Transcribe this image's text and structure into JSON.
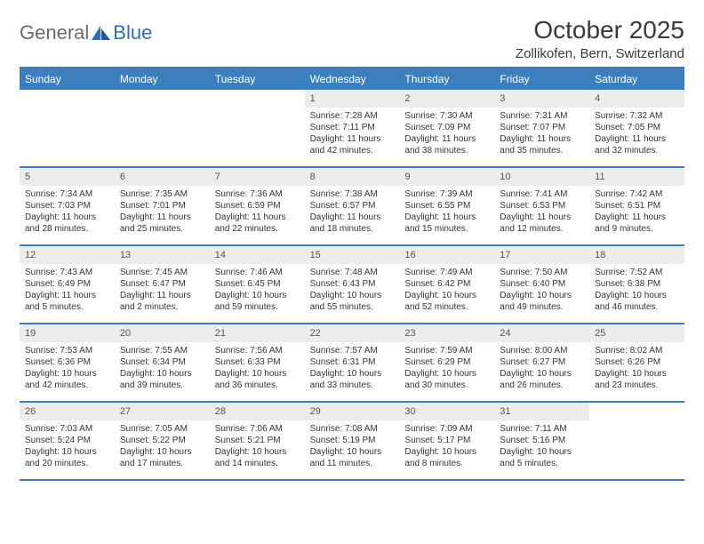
{
  "logo": {
    "general": "General",
    "blue": "Blue"
  },
  "title": "October 2025",
  "location": "Zollikofen, Bern, Switzerland",
  "colors": {
    "header_bg": "#3c7fbd",
    "header_text": "#ffffff",
    "daynum_bg": "#ececec",
    "daynum_text": "#555555",
    "body_text": "#333333",
    "logo_grey": "#6b6b6b",
    "logo_blue": "#2f6fae",
    "page_bg": "#ffffff"
  },
  "dow": [
    "Sunday",
    "Monday",
    "Tuesday",
    "Wednesday",
    "Thursday",
    "Friday",
    "Saturday"
  ],
  "weeks": [
    [
      null,
      null,
      null,
      {
        "n": "1",
        "sr": "Sunrise: 7:28 AM",
        "ss": "Sunset: 7:11 PM",
        "dl": "Daylight: 11 hours and 42 minutes."
      },
      {
        "n": "2",
        "sr": "Sunrise: 7:30 AM",
        "ss": "Sunset: 7:09 PM",
        "dl": "Daylight: 11 hours and 38 minutes."
      },
      {
        "n": "3",
        "sr": "Sunrise: 7:31 AM",
        "ss": "Sunset: 7:07 PM",
        "dl": "Daylight: 11 hours and 35 minutes."
      },
      {
        "n": "4",
        "sr": "Sunrise: 7:32 AM",
        "ss": "Sunset: 7:05 PM",
        "dl": "Daylight: 11 hours and 32 minutes."
      }
    ],
    [
      {
        "n": "5",
        "sr": "Sunrise: 7:34 AM",
        "ss": "Sunset: 7:03 PM",
        "dl": "Daylight: 11 hours and 28 minutes."
      },
      {
        "n": "6",
        "sr": "Sunrise: 7:35 AM",
        "ss": "Sunset: 7:01 PM",
        "dl": "Daylight: 11 hours and 25 minutes."
      },
      {
        "n": "7",
        "sr": "Sunrise: 7:36 AM",
        "ss": "Sunset: 6:59 PM",
        "dl": "Daylight: 11 hours and 22 minutes."
      },
      {
        "n": "8",
        "sr": "Sunrise: 7:38 AM",
        "ss": "Sunset: 6:57 PM",
        "dl": "Daylight: 11 hours and 18 minutes."
      },
      {
        "n": "9",
        "sr": "Sunrise: 7:39 AM",
        "ss": "Sunset: 6:55 PM",
        "dl": "Daylight: 11 hours and 15 minutes."
      },
      {
        "n": "10",
        "sr": "Sunrise: 7:41 AM",
        "ss": "Sunset: 6:53 PM",
        "dl": "Daylight: 11 hours and 12 minutes."
      },
      {
        "n": "11",
        "sr": "Sunrise: 7:42 AM",
        "ss": "Sunset: 6:51 PM",
        "dl": "Daylight: 11 hours and 9 minutes."
      }
    ],
    [
      {
        "n": "12",
        "sr": "Sunrise: 7:43 AM",
        "ss": "Sunset: 6:49 PM",
        "dl": "Daylight: 11 hours and 5 minutes."
      },
      {
        "n": "13",
        "sr": "Sunrise: 7:45 AM",
        "ss": "Sunset: 6:47 PM",
        "dl": "Daylight: 11 hours and 2 minutes."
      },
      {
        "n": "14",
        "sr": "Sunrise: 7:46 AM",
        "ss": "Sunset: 6:45 PM",
        "dl": "Daylight: 10 hours and 59 minutes."
      },
      {
        "n": "15",
        "sr": "Sunrise: 7:48 AM",
        "ss": "Sunset: 6:43 PM",
        "dl": "Daylight: 10 hours and 55 minutes."
      },
      {
        "n": "16",
        "sr": "Sunrise: 7:49 AM",
        "ss": "Sunset: 6:42 PM",
        "dl": "Daylight: 10 hours and 52 minutes."
      },
      {
        "n": "17",
        "sr": "Sunrise: 7:50 AM",
        "ss": "Sunset: 6:40 PM",
        "dl": "Daylight: 10 hours and 49 minutes."
      },
      {
        "n": "18",
        "sr": "Sunrise: 7:52 AM",
        "ss": "Sunset: 6:38 PM",
        "dl": "Daylight: 10 hours and 46 minutes."
      }
    ],
    [
      {
        "n": "19",
        "sr": "Sunrise: 7:53 AM",
        "ss": "Sunset: 6:36 PM",
        "dl": "Daylight: 10 hours and 42 minutes."
      },
      {
        "n": "20",
        "sr": "Sunrise: 7:55 AM",
        "ss": "Sunset: 6:34 PM",
        "dl": "Daylight: 10 hours and 39 minutes."
      },
      {
        "n": "21",
        "sr": "Sunrise: 7:56 AM",
        "ss": "Sunset: 6:33 PM",
        "dl": "Daylight: 10 hours and 36 minutes."
      },
      {
        "n": "22",
        "sr": "Sunrise: 7:57 AM",
        "ss": "Sunset: 6:31 PM",
        "dl": "Daylight: 10 hours and 33 minutes."
      },
      {
        "n": "23",
        "sr": "Sunrise: 7:59 AM",
        "ss": "Sunset: 6:29 PM",
        "dl": "Daylight: 10 hours and 30 minutes."
      },
      {
        "n": "24",
        "sr": "Sunrise: 8:00 AM",
        "ss": "Sunset: 6:27 PM",
        "dl": "Daylight: 10 hours and 26 minutes."
      },
      {
        "n": "25",
        "sr": "Sunrise: 8:02 AM",
        "ss": "Sunset: 6:26 PM",
        "dl": "Daylight: 10 hours and 23 minutes."
      }
    ],
    [
      {
        "n": "26",
        "sr": "Sunrise: 7:03 AM",
        "ss": "Sunset: 5:24 PM",
        "dl": "Daylight: 10 hours and 20 minutes."
      },
      {
        "n": "27",
        "sr": "Sunrise: 7:05 AM",
        "ss": "Sunset: 5:22 PM",
        "dl": "Daylight: 10 hours and 17 minutes."
      },
      {
        "n": "28",
        "sr": "Sunrise: 7:06 AM",
        "ss": "Sunset: 5:21 PM",
        "dl": "Daylight: 10 hours and 14 minutes."
      },
      {
        "n": "29",
        "sr": "Sunrise: 7:08 AM",
        "ss": "Sunset: 5:19 PM",
        "dl": "Daylight: 10 hours and 11 minutes."
      },
      {
        "n": "30",
        "sr": "Sunrise: 7:09 AM",
        "ss": "Sunset: 5:17 PM",
        "dl": "Daylight: 10 hours and 8 minutes."
      },
      {
        "n": "31",
        "sr": "Sunrise: 7:11 AM",
        "ss": "Sunset: 5:16 PM",
        "dl": "Daylight: 10 hours and 5 minutes."
      },
      null
    ]
  ]
}
